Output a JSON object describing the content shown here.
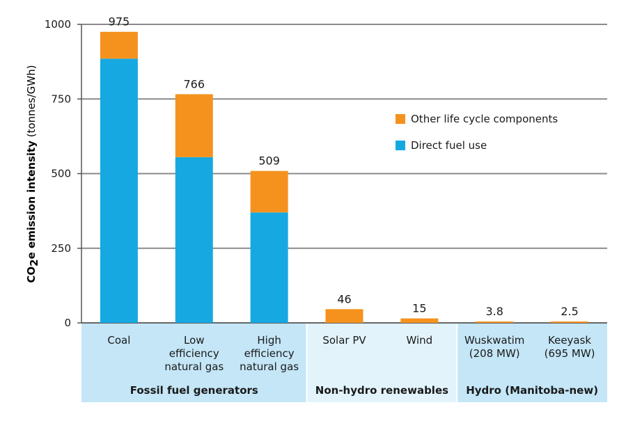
{
  "chart_data": {
    "type": "bar",
    "stacked": true,
    "ylabel": "CO2e emission intensity (tonnes/GWh)",
    "ylabel_parts": {
      "bold_a": "CO",
      "sub": "2",
      "bold_b": "e emission intensity",
      "normal": " (tonnes/GWh)"
    },
    "ylim": [
      0,
      1000
    ],
    "yticks": [
      "0",
      "250",
      "500",
      "750",
      "1000"
    ],
    "ytick_values": [
      0,
      250,
      500,
      750,
      1000
    ],
    "grid": true,
    "legend_position": "top-right",
    "categories": [
      [
        "Coal"
      ],
      [
        "Low",
        "efficiency",
        "natural gas"
      ],
      [
        "High",
        "efficiency",
        "natural gas"
      ],
      [
        "Solar PV"
      ],
      [
        "Wind"
      ],
      [
        "Wuskwatim",
        "(208 MW)"
      ],
      [
        "Keeyask",
        "(695 MW)"
      ]
    ],
    "series": [
      {
        "name": "Direct fuel use",
        "color": "#16a9e1",
        "values": [
          885,
          555,
          370,
          0,
          0,
          0,
          0
        ]
      },
      {
        "name": "Other life cycle components",
        "color": "#f5921e",
        "values": [
          90,
          211,
          139,
          46,
          15,
          3.8,
          2.5
        ]
      }
    ],
    "totals": [
      "975",
      "766",
      "509",
      "46",
      "15",
      "3.8",
      "2.5"
    ],
    "total_values": [
      975,
      766,
      509,
      46,
      15,
      3.8,
      2.5
    ],
    "groups": [
      {
        "label": "Fossil fuel generators",
        "count": 3,
        "color": "#c4e6f7"
      },
      {
        "label": "Non-hydro renewables",
        "count": 2,
        "color": "#e2f3fc"
      },
      {
        "label": "Hydro (Manitoba-new)",
        "count": 2,
        "color": "#c4e6f7"
      }
    ]
  }
}
